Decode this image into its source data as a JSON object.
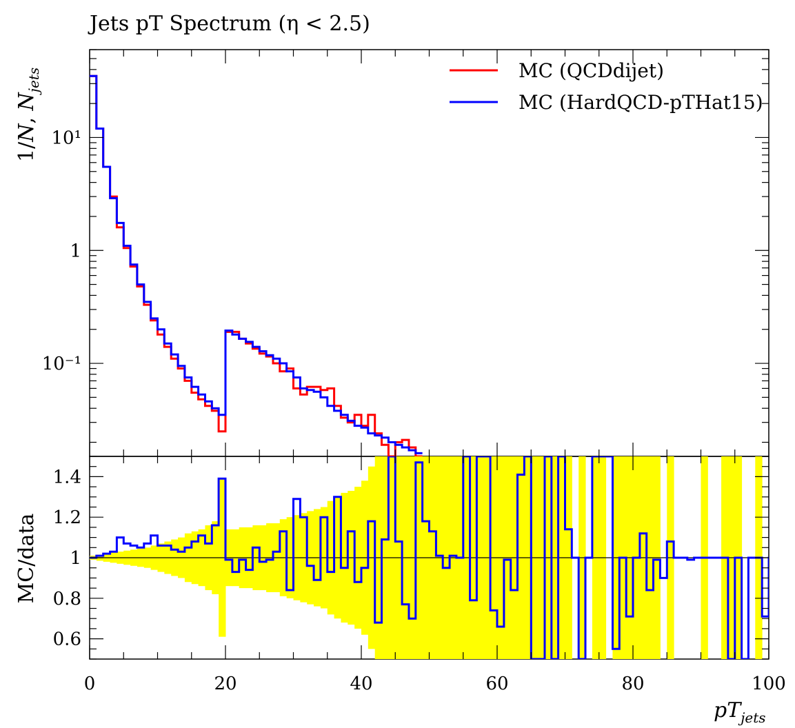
{
  "chart_data": [
    {
      "type": "line",
      "panel": "main",
      "title": "Jets pT Spectrum (η < 2.5)",
      "ylabel": "1/N, N_jets",
      "yscale": "log",
      "ylim": [
        0.015,
        60
      ],
      "xlim": [
        0,
        100
      ],
      "yticks": [
        "10⁻¹",
        "1",
        "10¹"
      ],
      "legend_position": "top-right",
      "grid": false,
      "x_bin_edges_start": 0,
      "bin_width": 1,
      "series": [
        {
          "name": "MC (QCDdijet)",
          "color": "#ff0000",
          "values": [
            35,
            12,
            5.5,
            3.0,
            1.6,
            1.05,
            0.72,
            0.48,
            0.33,
            0.24,
            0.18,
            0.14,
            0.11,
            0.09,
            0.07,
            0.055,
            0.048,
            0.042,
            0.038,
            0.025,
            0.19,
            0.19,
            0.165,
            0.15,
            0.135,
            0.122,
            0.115,
            0.1,
            0.085,
            0.09,
            0.06,
            0.053,
            0.062,
            0.062,
            0.058,
            0.06,
            0.042,
            0.033,
            0.03,
            0.035,
            0.028,
            0.035,
            0.024,
            0.019,
            0.015,
            0.02,
            0.021,
            0.018,
            0.015
          ]
        },
        {
          "name": "MC (HardQCD-pTHat15)",
          "color": "#0000ff",
          "values": [
            35,
            12,
            5.5,
            2.9,
            1.75,
            1.1,
            0.75,
            0.5,
            0.35,
            0.25,
            0.2,
            0.15,
            0.12,
            0.095,
            0.075,
            0.062,
            0.053,
            0.046,
            0.04,
            0.035,
            0.195,
            0.18,
            0.165,
            0.155,
            0.14,
            0.128,
            0.118,
            0.11,
            0.1,
            0.085,
            0.075,
            0.06,
            0.058,
            0.056,
            0.05,
            0.042,
            0.038,
            0.035,
            0.031,
            0.028,
            0.027,
            0.024,
            0.023,
            0.022,
            0.02,
            0.019,
            0.018,
            0.017,
            0.016
          ]
        }
      ]
    },
    {
      "type": "line",
      "panel": "ratio",
      "ylabel": "MC/data",
      "xlabel": "pT_jets",
      "xlim": [
        0,
        100
      ],
      "ylim": [
        0.5,
        1.5
      ],
      "yticks": [
        "0.6",
        "0.8",
        "1",
        "1.2",
        "1.4"
      ],
      "xticks": [
        "0",
        "20",
        "40",
        "60",
        "80",
        "100"
      ],
      "reference_line": 1,
      "band": {
        "color": "#ffff00",
        "half_width": [
          0.01,
          0.015,
          0.02,
          0.025,
          0.03,
          0.035,
          0.04,
          0.045,
          0.05,
          0.06,
          0.07,
          0.08,
          0.09,
          0.1,
          0.12,
          0.13,
          0.14,
          0.16,
          0.18,
          0.39,
          0.14,
          0.14,
          0.15,
          0.15,
          0.16,
          0.16,
          0.17,
          0.17,
          0.19,
          0.2,
          0.21,
          0.22,
          0.23,
          0.24,
          0.25,
          0.28,
          0.3,
          0.32,
          0.33,
          0.35,
          0.38,
          0.45,
          0.5,
          0.6,
          0.65,
          0.7,
          0.75,
          0.8,
          0.9,
          1.0,
          1.0,
          1.0,
          1.0,
          1.0,
          1.0,
          1.0,
          1.0,
          1.0,
          1.0,
          1.0,
          1.0,
          1.0,
          1.0,
          1.0,
          1.0,
          1.0,
          1.0,
          1.0,
          1.0,
          1.0,
          1.0,
          0,
          1.0,
          0,
          1.0,
          1.0,
          0,
          1.0,
          1.0,
          1.0,
          1.0,
          1.0,
          1.0,
          1.0,
          0,
          1.0,
          0,
          0,
          0,
          0,
          1.0,
          0,
          0,
          1.0,
          1.0,
          1.0,
          0,
          0,
          1.0,
          0
        ]
      },
      "series": [
        {
          "name": "MC (HardQCD-pTHat15)",
          "color": "#0000ff",
          "values": [
            1.0,
            1.01,
            1.02,
            1.03,
            1.1,
            1.07,
            1.06,
            1.05,
            1.07,
            1.11,
            1.06,
            1.06,
            1.04,
            1.03,
            1.05,
            1.08,
            1.11,
            1.07,
            1.16,
            1.39,
            0.99,
            0.93,
            0.99,
            0.94,
            1.05,
            0.98,
            0.99,
            1.03,
            1.13,
            0.84,
            1.29,
            1.2,
            0.96,
            0.89,
            1.2,
            0.93,
            1.3,
            0.95,
            1.13,
            0.88,
            0.95,
            1.18,
            0.68,
            1.09,
            1.5,
            1.08,
            0.77,
            0.7,
            1.47,
            1.18,
            1.13,
            1.01,
            0.95,
            1.01,
            1.0,
            1.5,
            0.79,
            1.5,
            1.5,
            0.74,
            0.66,
            0.99,
            0.84,
            1.41,
            1.5,
            0.5,
            0.5,
            1.5,
            0.5,
            1.5,
            1.14,
            1.0,
            0.5,
            1.0,
            1.5,
            1.5,
            1.5,
            0.55,
            1.0,
            0.71,
            1.0,
            1.12,
            0.84,
            0.99,
            0.9,
            1.08,
            1.0,
            1.0,
            0.99,
            1.0,
            1.0,
            1.0,
            1.0,
            1.0,
            0.5,
            1.0,
            0.5,
            1.0,
            1.0,
            0.71,
            1.0
          ]
        }
      ]
    }
  ]
}
